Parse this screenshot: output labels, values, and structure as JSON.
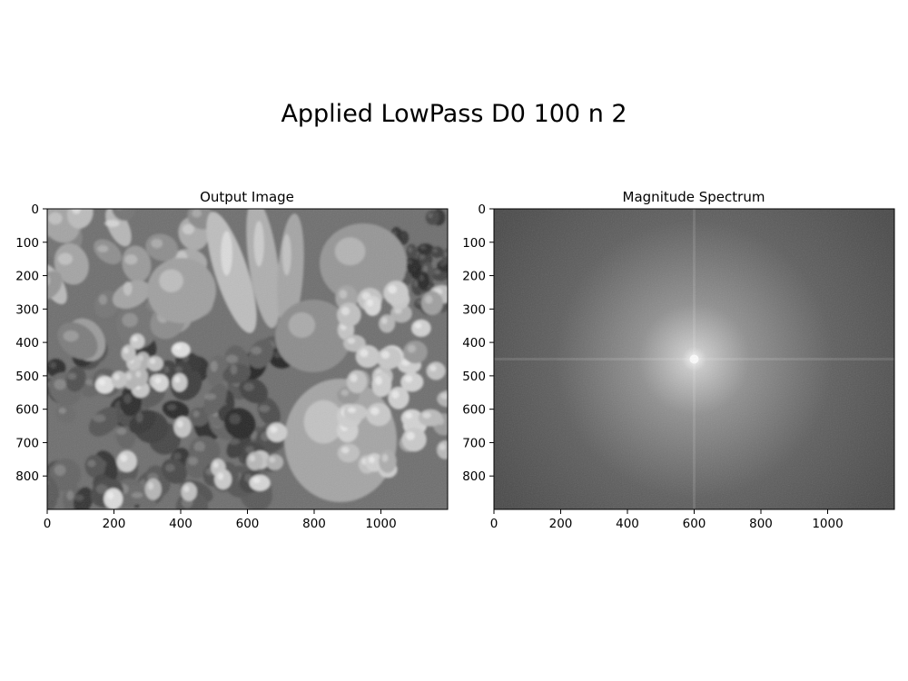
{
  "figure": {
    "title": "Applied LowPass D0 100 n 2"
  },
  "chart_data": [
    {
      "type": "heatmap",
      "title": "Output Image",
      "content": "grayscale fruit photo (low-pass filtered)",
      "xlim": [
        0,
        1200
      ],
      "ylim": [
        900,
        0
      ],
      "xticks": [
        0,
        200,
        400,
        600,
        800,
        1000
      ],
      "yticks": [
        0,
        100,
        200,
        300,
        400,
        500,
        600,
        700,
        800
      ],
      "colormap": "gray",
      "grid": false
    },
    {
      "type": "heatmap",
      "title": "Magnitude Spectrum",
      "content": "log magnitude spectrum, bright center",
      "xlim": [
        0,
        1200
      ],
      "ylim": [
        900,
        0
      ],
      "xticks": [
        0,
        200,
        400,
        600,
        800,
        1000
      ],
      "yticks": [
        0,
        100,
        200,
        300,
        400,
        500,
        600,
        700,
        800
      ],
      "center": [
        600,
        450
      ],
      "colormap": "gray",
      "grid": false
    }
  ]
}
